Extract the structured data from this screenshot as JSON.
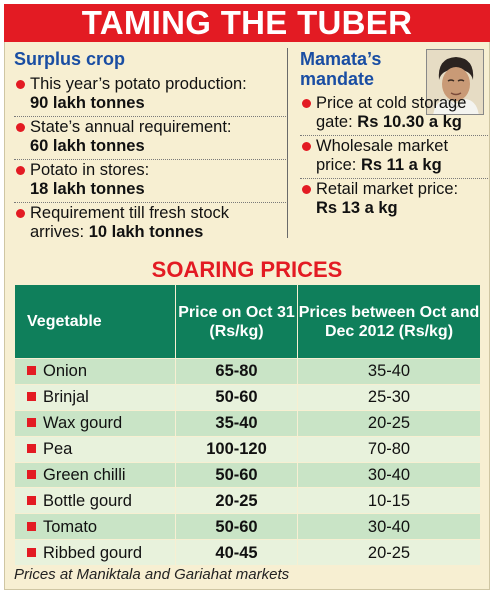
{
  "banner": {
    "title": "TAMING THE TUBER"
  },
  "surplus": {
    "title": "Surplus crop",
    "items": [
      {
        "label": "This year’s potato production:",
        "value": "90 lakh tonnes"
      },
      {
        "label": "State’s annual requirement:",
        "value": "60 lakh tonnes"
      },
      {
        "label": "Potato in stores:",
        "value": "18 lakh tonnes"
      },
      {
        "label": "Requirement till fresh stock arrives:",
        "value": "10 lakh tonnes"
      }
    ]
  },
  "mandate": {
    "title": "Mamata’s mandate",
    "items": [
      {
        "label": "Price at cold storage gate:",
        "value": "Rs 10.30 a kg"
      },
      {
        "label": "Wholesale market price:",
        "value": "Rs 11 a kg"
      },
      {
        "label": "Retail market price:",
        "value": "Rs 13 a kg"
      }
    ]
  },
  "table": {
    "title": "SOARING PRICES",
    "headers": [
      "Vegetable",
      "Price on Oct 31 (Rs/kg)",
      "Prices between Oct and Dec 2012 (Rs/kg)"
    ],
    "rows": [
      [
        "Onion",
        "65-80",
        "35-40"
      ],
      [
        "Brinjal",
        "50-60",
        "25-30"
      ],
      [
        "Wax gourd",
        "35-40",
        "20-25"
      ],
      [
        "Pea",
        "100-120",
        "70-80"
      ],
      [
        "Green chilli",
        "50-60",
        "30-40"
      ],
      [
        "Bottle gourd",
        "20-25",
        "10-15"
      ],
      [
        "Tomato",
        "50-60",
        "30-40"
      ],
      [
        "Ribbed gourd",
        "40-45",
        "20-25"
      ]
    ]
  },
  "footnote": "Prices at Maniktala and Gariahat markets",
  "colors": {
    "accent_red": "#e31b23",
    "heading_blue": "#1a4ea3",
    "header_green": "#0f7f5b",
    "row_light": "#e8f2dc",
    "row_dark": "#c9e4c6",
    "background": "#f7efd2"
  }
}
